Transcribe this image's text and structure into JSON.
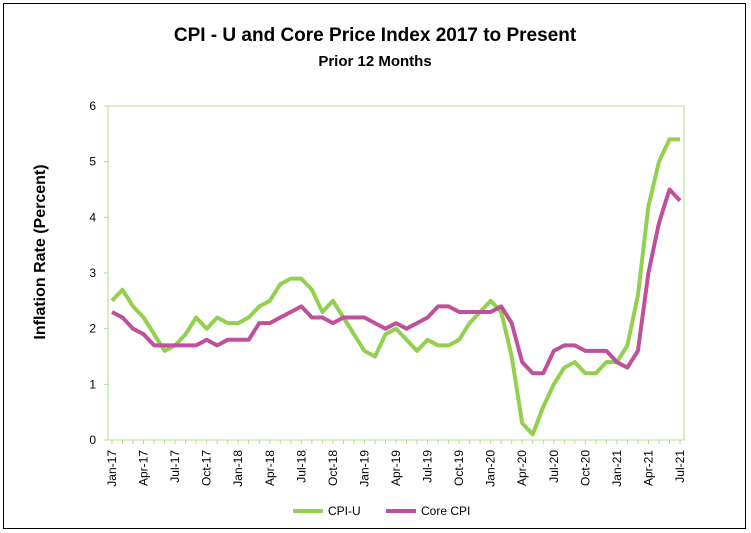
{
  "chart_data": {
    "type": "line",
    "title": "CPI - U and Core Price Index 2017 to Present",
    "subtitle": "Prior 12 Months",
    "xlabel": "",
    "ylabel": "Inflation Rate (Percent)",
    "ylim": [
      0,
      6
    ],
    "yticks": [
      "0",
      "1",
      "2",
      "3",
      "4",
      "5",
      "6"
    ],
    "grid": false,
    "legend_position": "bottom",
    "x_tick_labels": [
      "Jan-17",
      "Apr-17",
      "Jul-17",
      "Oct-17",
      "Jan-18",
      "Apr-18",
      "Jul-18",
      "Oct-18",
      "Jan-19",
      "Apr-19",
      "Jul-19",
      "Oct-19",
      "Jan-20",
      "Apr-20",
      "Jul-20",
      "Oct-20",
      "Jan-21",
      "Apr-21",
      "Jul-21"
    ],
    "x": [
      "Jan-17",
      "Feb-17",
      "Mar-17",
      "Apr-17",
      "May-17",
      "Jun-17",
      "Jul-17",
      "Aug-17",
      "Sep-17",
      "Oct-17",
      "Nov-17",
      "Dec-17",
      "Jan-18",
      "Feb-18",
      "Mar-18",
      "Apr-18",
      "May-18",
      "Jun-18",
      "Jul-18",
      "Aug-18",
      "Sep-18",
      "Oct-18",
      "Nov-18",
      "Dec-18",
      "Jan-19",
      "Feb-19",
      "Mar-19",
      "Apr-19",
      "May-19",
      "Jun-19",
      "Jul-19",
      "Aug-19",
      "Sep-19",
      "Oct-19",
      "Nov-19",
      "Dec-19",
      "Jan-20",
      "Feb-20",
      "Mar-20",
      "Apr-20",
      "May-20",
      "Jun-20",
      "Jul-20",
      "Aug-20",
      "Sep-20",
      "Oct-20",
      "Nov-20",
      "Dec-20",
      "Jan-21",
      "Feb-21",
      "Mar-21",
      "Apr-21",
      "May-21",
      "Jun-21",
      "Jul-21"
    ],
    "series": [
      {
        "name": "CPI-U",
        "color": "#92D050",
        "values": [
          2.5,
          2.7,
          2.4,
          2.2,
          1.9,
          1.6,
          1.7,
          1.9,
          2.2,
          2.0,
          2.2,
          2.1,
          2.1,
          2.2,
          2.4,
          2.5,
          2.8,
          2.9,
          2.9,
          2.7,
          2.3,
          2.5,
          2.2,
          1.9,
          1.6,
          1.5,
          1.9,
          2.0,
          1.8,
          1.6,
          1.8,
          1.7,
          1.7,
          1.8,
          2.1,
          2.3,
          2.5,
          2.3,
          1.5,
          0.3,
          0.1,
          0.6,
          1.0,
          1.3,
          1.4,
          1.2,
          1.2,
          1.4,
          1.4,
          1.7,
          2.6,
          4.2,
          5.0,
          5.4,
          5.4
        ]
      },
      {
        "name": "Core CPI",
        "color": "#C0509B",
        "values": [
          2.3,
          2.2,
          2.0,
          1.9,
          1.7,
          1.7,
          1.7,
          1.7,
          1.7,
          1.8,
          1.7,
          1.8,
          1.8,
          1.8,
          2.1,
          2.1,
          2.2,
          2.3,
          2.4,
          2.2,
          2.2,
          2.1,
          2.2,
          2.2,
          2.2,
          2.1,
          2.0,
          2.1,
          2.0,
          2.1,
          2.2,
          2.4,
          2.4,
          2.3,
          2.3,
          2.3,
          2.3,
          2.4,
          2.1,
          1.4,
          1.2,
          1.2,
          1.6,
          1.7,
          1.7,
          1.6,
          1.6,
          1.6,
          1.4,
          1.3,
          1.6,
          3.0,
          3.9,
          4.5,
          4.3
        ]
      }
    ]
  }
}
